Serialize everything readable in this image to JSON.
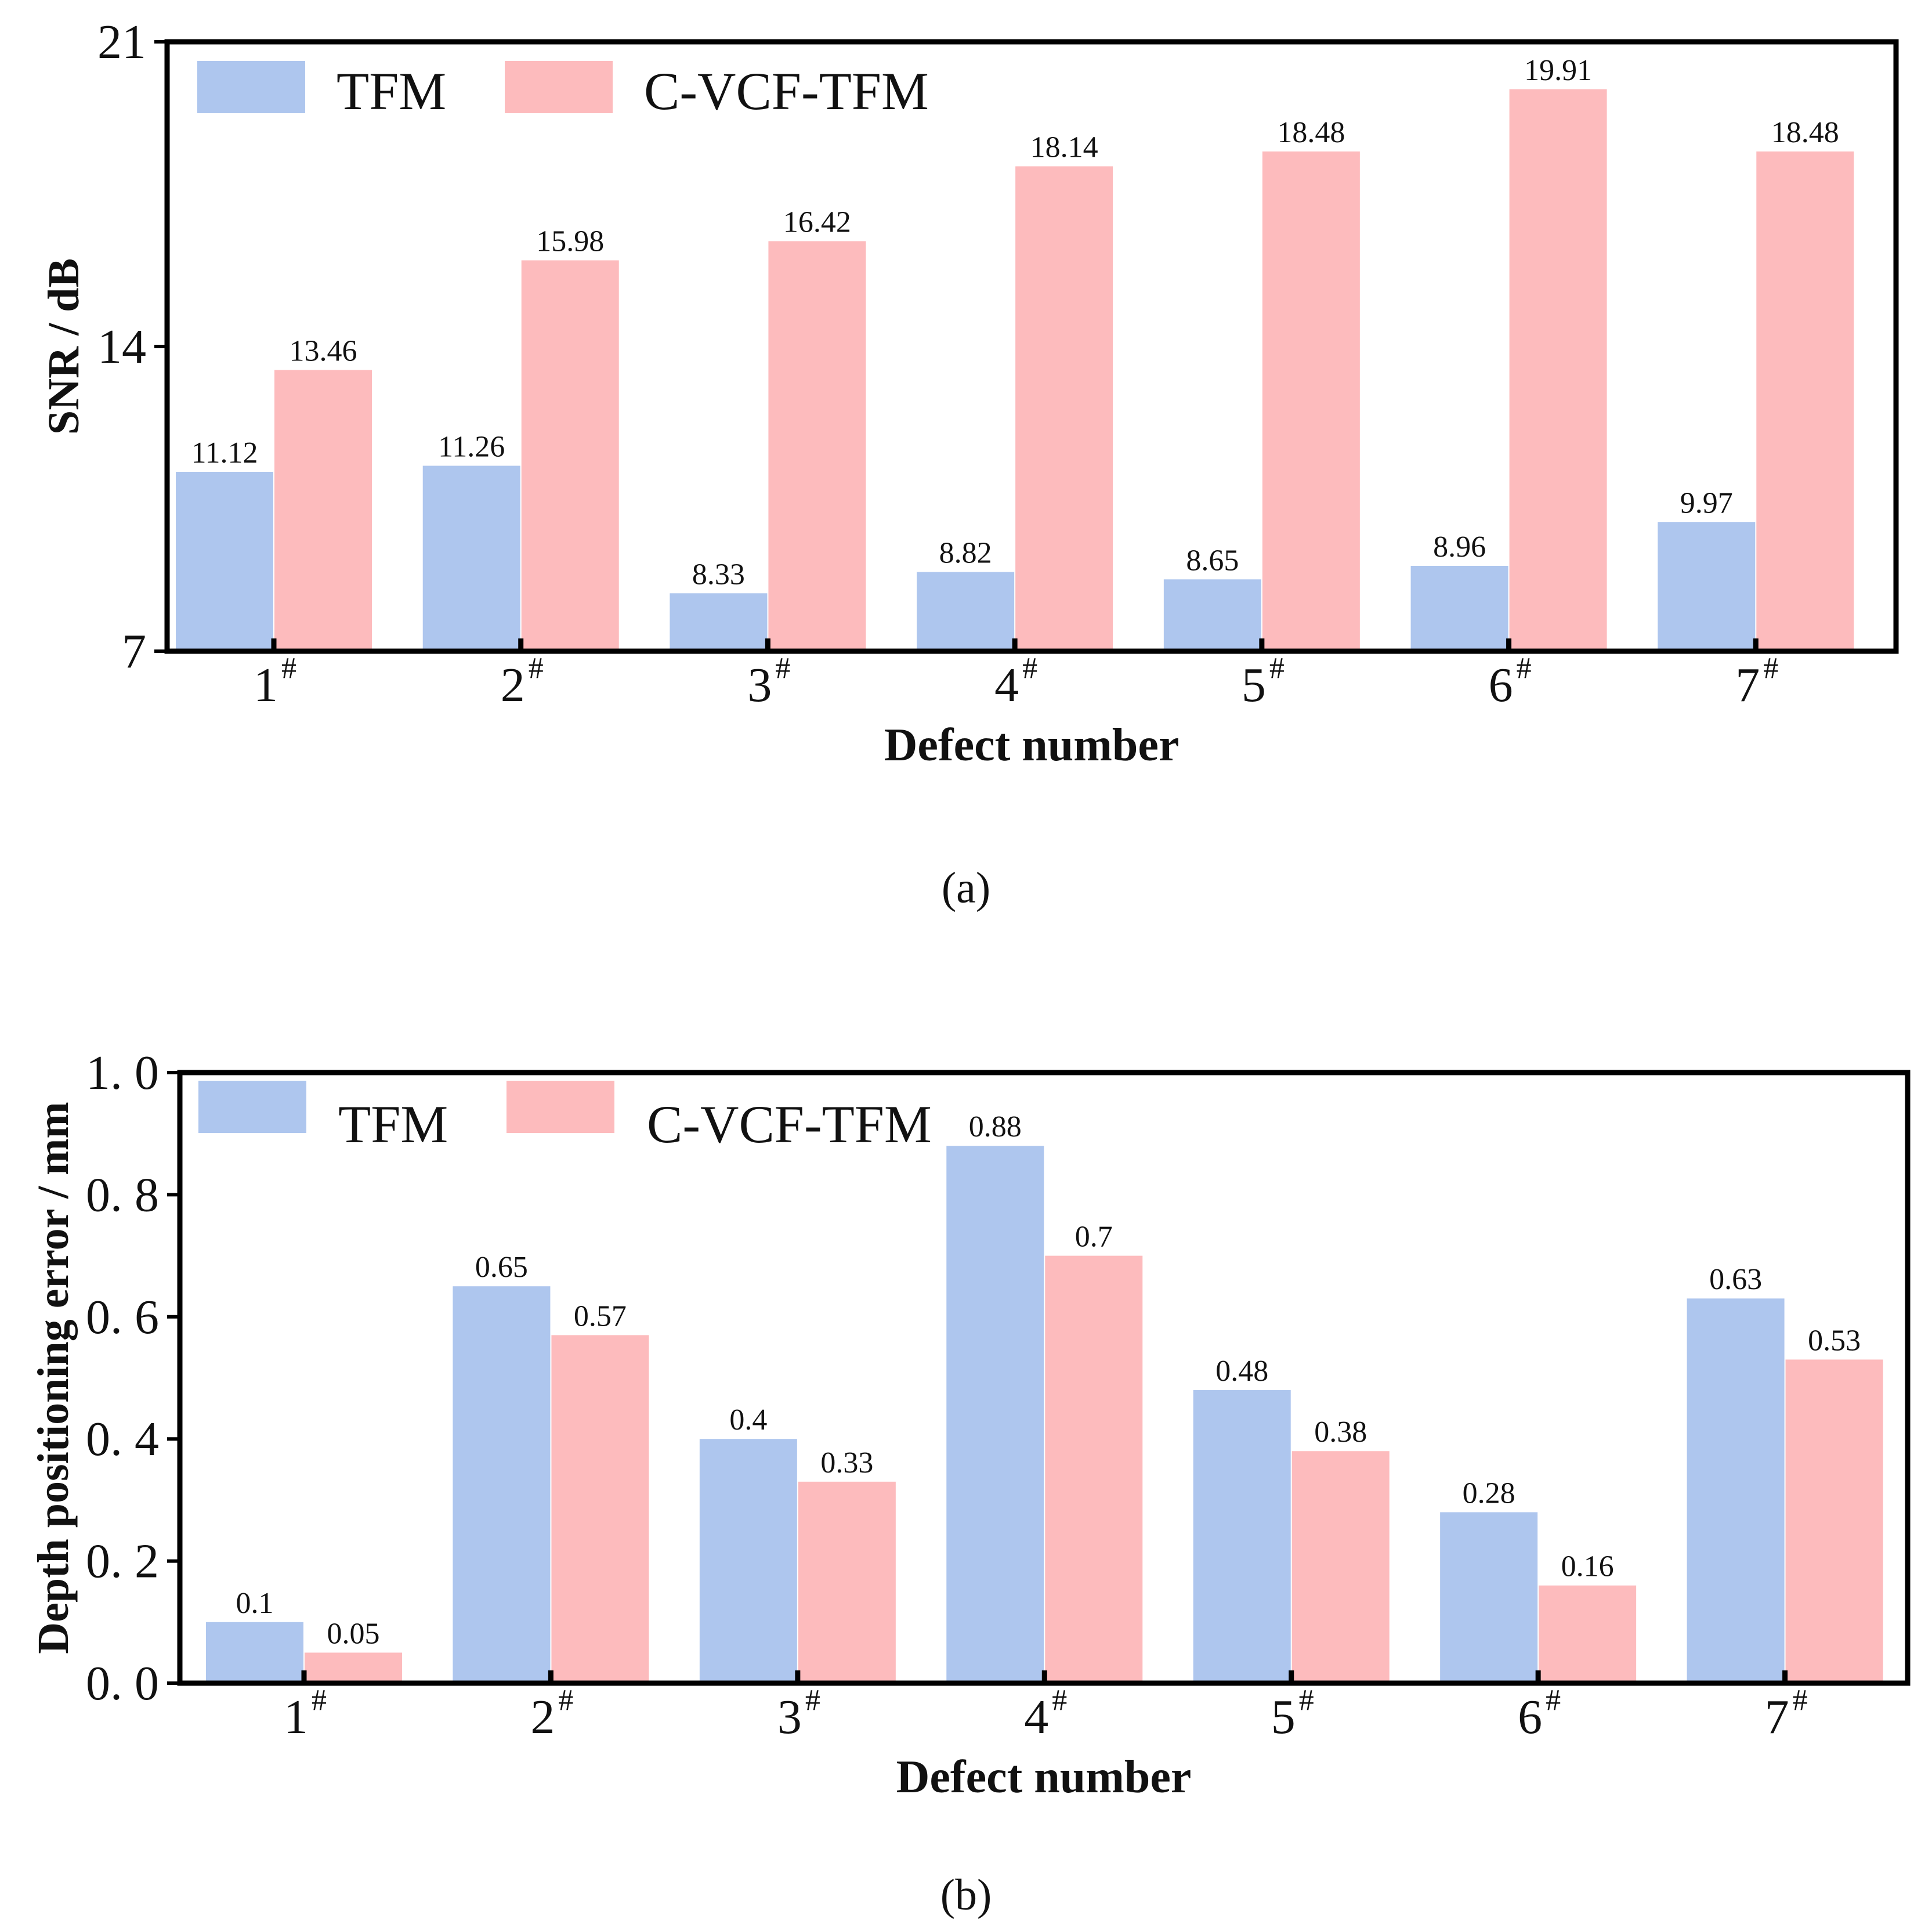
{
  "chart_data": [
    {
      "type": "bar",
      "panel_label": "(a)",
      "categories": [
        "1",
        "2",
        "3",
        "4",
        "5",
        "6",
        "7"
      ],
      "category_suffix": "#",
      "series": [
        {
          "name": "TFM",
          "color": "#aec6ee",
          "values": [
            11.12,
            11.26,
            8.33,
            8.82,
            8.65,
            8.96,
            9.97
          ],
          "labels": [
            "11.12",
            "11.26",
            "8.33",
            "8.82",
            "8.65",
            "8.96",
            "9.97"
          ]
        },
        {
          "name": "C-VCF-TFM",
          "color": "#fdbbbd",
          "values": [
            13.46,
            15.98,
            16.42,
            18.14,
            18.48,
            19.91,
            18.48
          ],
          "labels": [
            "13.46",
            "15.98",
            "16.42",
            "18.14",
            "18.48",
            "19.91",
            "18.48"
          ]
        }
      ],
      "xlabel": "Defect number",
      "ylabel": "SNR / dB",
      "ylim": [
        7,
        21
      ],
      "yticks": [
        7,
        14,
        21
      ],
      "ytick_labels": [
        "7",
        "14",
        "21"
      ],
      "grid": false,
      "legend": "top-left"
    },
    {
      "type": "bar",
      "panel_label": "(b)",
      "categories": [
        "1",
        "2",
        "3",
        "4",
        "5",
        "6",
        "7"
      ],
      "category_suffix": "#",
      "series": [
        {
          "name": "TFM",
          "color": "#aec6ee",
          "values": [
            0.1,
            0.65,
            0.4,
            0.88,
            0.48,
            0.28,
            0.63
          ],
          "labels": [
            "0.1",
            "0.65",
            "0.4",
            "0.88",
            "0.48",
            "0.28",
            "0.63"
          ]
        },
        {
          "name": "C-VCF-TFM",
          "color": "#fdbbbd",
          "values": [
            0.05,
            0.57,
            0.33,
            0.7,
            0.38,
            0.16,
            0.53
          ],
          "labels": [
            "0.05",
            "0.57",
            "0.33",
            "0.7",
            "0.38",
            "0.16",
            "0.53"
          ]
        }
      ],
      "xlabel": "Defect number",
      "ylabel": "Depth positioning error / mm",
      "ylim": [
        0,
        1.0
      ],
      "yticks": [
        0,
        0.2,
        0.4,
        0.6,
        0.8,
        1.0
      ],
      "ytick_labels": [
        "0. 0",
        "0. 2",
        "0. 4",
        "0. 6",
        "0. 8",
        "1. 0"
      ],
      "grid": false,
      "legend": "top-left"
    }
  ]
}
